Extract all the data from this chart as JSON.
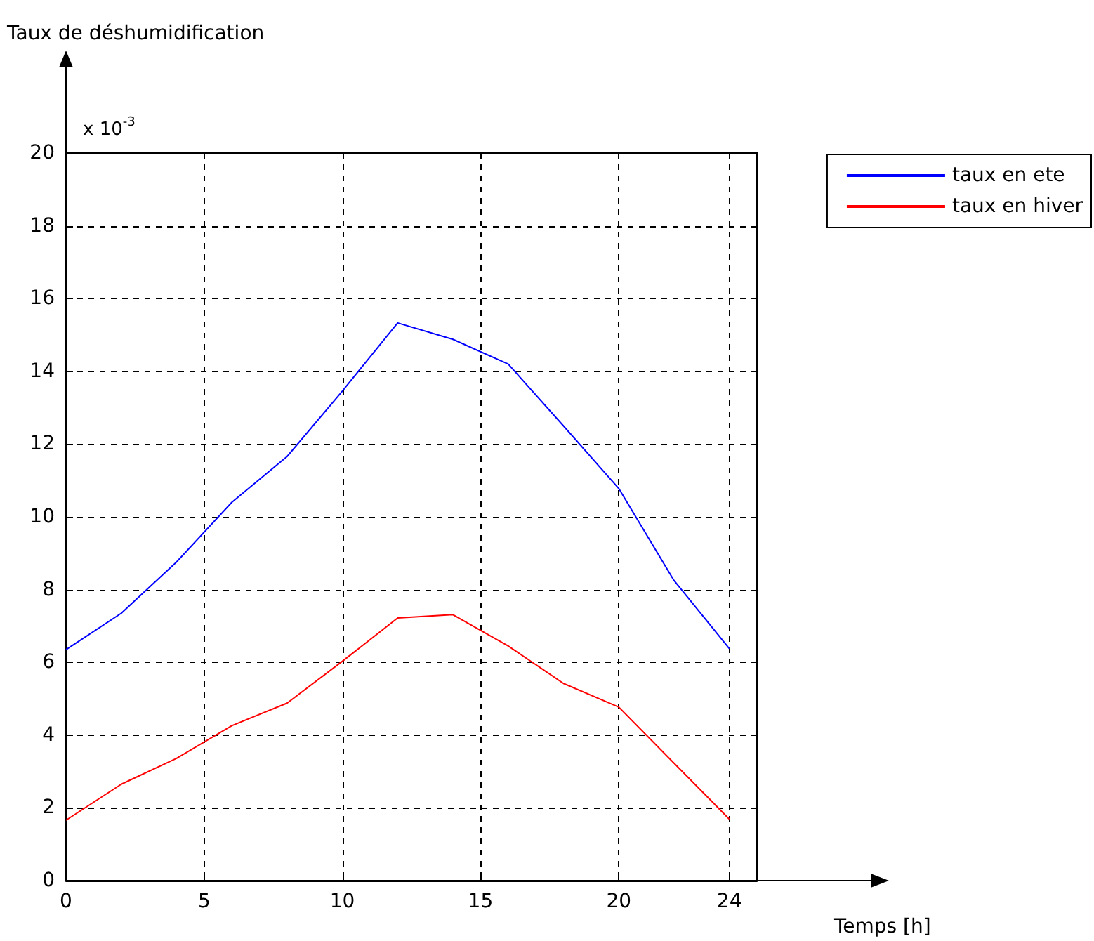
{
  "chart_data": {
    "type": "line",
    "ylabel": "Taux de déshumidification",
    "xlabel": "Temps [h]",
    "annotations": [
      "x 10$^{-3}$"
    ],
    "x": [
      0,
      2,
      4,
      6,
      8,
      10,
      12,
      14,
      16,
      18,
      20,
      22,
      24
    ],
    "series": [
      {
        "name": "taux en ete",
        "color": "#0000ff",
        "values": [
          6.35,
          7.35,
          8.76,
          10.4,
          11.66,
          13.46,
          15.33,
          14.88,
          14.2,
          12.5,
          10.78,
          8.25,
          6.38
        ]
      },
      {
        "name": "taux en hiver",
        "color": "#ff0000",
        "values": [
          1.66,
          2.65,
          3.36,
          4.26,
          4.88,
          6.03,
          7.22,
          7.31,
          6.45,
          5.42,
          4.77,
          3.23,
          1.69
        ]
      }
    ],
    "xlim": [
      0,
      25
    ],
    "xticks": [
      0,
      5,
      10,
      15,
      20,
      24
    ],
    "ylim": [
      0,
      20
    ],
    "yticks": [
      0,
      2,
      4,
      6,
      8,
      10,
      12,
      14,
      16,
      18,
      20
    ],
    "grid": true,
    "legend": "top right",
    "marker": "none",
    "line_style": "solid"
  }
}
